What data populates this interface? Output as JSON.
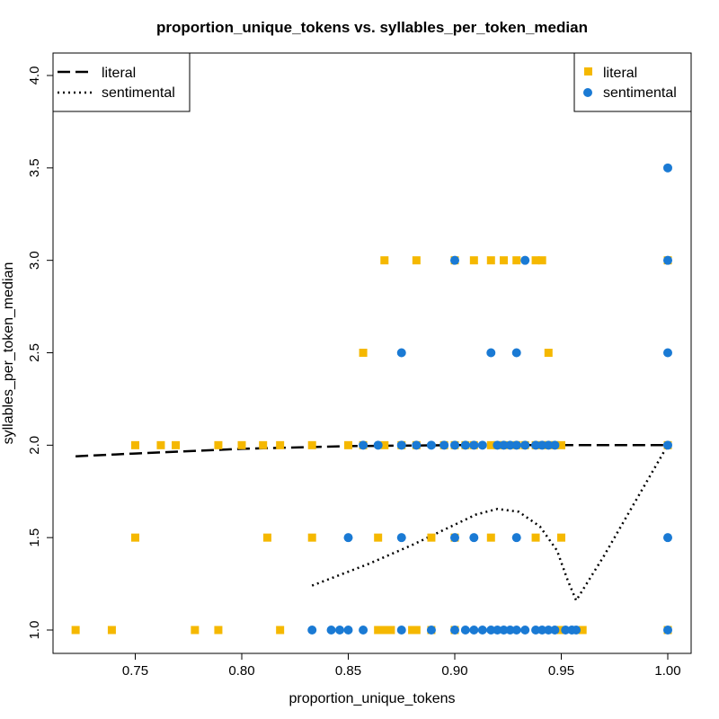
{
  "chart_data": {
    "type": "scatter",
    "title": "proportion_unique_tokens vs. syllables_per_token_median",
    "xlabel": "proportion_unique_tokens",
    "ylabel": "syllables_per_token_median",
    "xlim": [
      0.72,
      1.0
    ],
    "ylim": [
      1.0,
      4.0
    ],
    "x_ticks": [
      "0.75",
      "0.80",
      "0.85",
      "0.90",
      "0.95",
      "1.00"
    ],
    "y_ticks": [
      "1.0",
      "1.5",
      "2.0",
      "2.5",
      "3.0",
      "3.5",
      "4.0"
    ],
    "grid": false,
    "colors": {
      "literal": "#f5b800",
      "sentimental": "#1a7ad4"
    },
    "legend_points": {
      "placement": "top-right",
      "entries": [
        {
          "label": "literal",
          "marker": "square"
        },
        {
          "label": "sentimental",
          "marker": "circle"
        }
      ]
    },
    "legend_lines": {
      "placement": "top-left",
      "entries": [
        {
          "label": "literal",
          "dash": "long-dash"
        },
        {
          "label": "sentimental",
          "dash": "dotted"
        }
      ]
    },
    "series": [
      {
        "name": "literal",
        "marker": "square",
        "points": [
          [
            0.722,
            1.0
          ],
          [
            0.739,
            1.0
          ],
          [
            0.778,
            1.0
          ],
          [
            0.789,
            1.0
          ],
          [
            0.818,
            1.0
          ],
          [
            0.864,
            1.0
          ],
          [
            0.867,
            1.0
          ],
          [
            0.87,
            1.0
          ],
          [
            0.88,
            1.0
          ],
          [
            0.882,
            1.0
          ],
          [
            0.889,
            1.0
          ],
          [
            0.9,
            1.0
          ],
          [
            0.95,
            1.0
          ],
          [
            0.96,
            1.0
          ],
          [
            0.75,
            1.5
          ],
          [
            0.812,
            1.5
          ],
          [
            0.833,
            1.5
          ],
          [
            0.864,
            1.5
          ],
          [
            0.889,
            1.5
          ],
          [
            0.9,
            1.5
          ],
          [
            0.917,
            1.5
          ],
          [
            0.938,
            1.5
          ],
          [
            0.95,
            1.5
          ],
          [
            0.75,
            2.0
          ],
          [
            0.762,
            2.0
          ],
          [
            0.769,
            2.0
          ],
          [
            0.789,
            2.0
          ],
          [
            0.8,
            2.0
          ],
          [
            0.81,
            2.0
          ],
          [
            0.818,
            2.0
          ],
          [
            0.833,
            2.0
          ],
          [
            0.85,
            2.0
          ],
          [
            0.857,
            2.0
          ],
          [
            0.867,
            2.0
          ],
          [
            0.875,
            2.0
          ],
          [
            0.882,
            2.0
          ],
          [
            0.895,
            2.0
          ],
          [
            0.9,
            2.0
          ],
          [
            0.905,
            2.0
          ],
          [
            0.909,
            2.0
          ],
          [
            0.917,
            2.0
          ],
          [
            0.92,
            2.0
          ],
          [
            0.923,
            2.0
          ],
          [
            0.929,
            2.0
          ],
          [
            0.933,
            2.0
          ],
          [
            0.938,
            2.0
          ],
          [
            0.941,
            2.0
          ],
          [
            0.944,
            2.0
          ],
          [
            0.947,
            2.0
          ],
          [
            0.95,
            2.0
          ],
          [
            0.857,
            2.5
          ],
          [
            0.944,
            2.5
          ],
          [
            0.867,
            3.0
          ],
          [
            0.882,
            3.0
          ],
          [
            0.9,
            3.0
          ],
          [
            0.909,
            3.0
          ],
          [
            0.917,
            3.0
          ],
          [
            0.923,
            3.0
          ],
          [
            0.929,
            3.0
          ],
          [
            0.938,
            3.0
          ],
          [
            0.941,
            3.0
          ],
          [
            1.0,
            3.0
          ],
          [
            1.0,
            2.0
          ],
          [
            1.0,
            1.0
          ]
        ]
      },
      {
        "name": "sentimental",
        "marker": "circle",
        "points": [
          [
            0.833,
            1.0
          ],
          [
            0.842,
            1.0
          ],
          [
            0.846,
            1.0
          ],
          [
            0.85,
            1.0
          ],
          [
            0.857,
            1.0
          ],
          [
            0.875,
            1.0
          ],
          [
            0.889,
            1.0
          ],
          [
            0.9,
            1.0
          ],
          [
            0.905,
            1.0
          ],
          [
            0.909,
            1.0
          ],
          [
            0.913,
            1.0
          ],
          [
            0.917,
            1.0
          ],
          [
            0.92,
            1.0
          ],
          [
            0.923,
            1.0
          ],
          [
            0.926,
            1.0
          ],
          [
            0.929,
            1.0
          ],
          [
            0.933,
            1.0
          ],
          [
            0.938,
            1.0
          ],
          [
            0.941,
            1.0
          ],
          [
            0.944,
            1.0
          ],
          [
            0.947,
            1.0
          ],
          [
            0.952,
            1.0
          ],
          [
            0.955,
            1.0
          ],
          [
            0.957,
            1.0
          ],
          [
            1.0,
            1.0
          ],
          [
            0.85,
            1.5
          ],
          [
            0.875,
            1.5
          ],
          [
            0.9,
            1.5
          ],
          [
            0.909,
            1.5
          ],
          [
            0.929,
            1.5
          ],
          [
            1.0,
            1.5
          ],
          [
            0.857,
            2.0
          ],
          [
            0.864,
            2.0
          ],
          [
            0.875,
            2.0
          ],
          [
            0.882,
            2.0
          ],
          [
            0.889,
            2.0
          ],
          [
            0.895,
            2.0
          ],
          [
            0.9,
            2.0
          ],
          [
            0.905,
            2.0
          ],
          [
            0.909,
            2.0
          ],
          [
            0.913,
            2.0
          ],
          [
            0.92,
            2.0
          ],
          [
            0.923,
            2.0
          ],
          [
            0.926,
            2.0
          ],
          [
            0.929,
            2.0
          ],
          [
            0.933,
            2.0
          ],
          [
            0.938,
            2.0
          ],
          [
            0.941,
            2.0
          ],
          [
            0.944,
            2.0
          ],
          [
            0.947,
            2.0
          ],
          [
            1.0,
            2.0
          ],
          [
            0.875,
            2.5
          ],
          [
            0.917,
            2.5
          ],
          [
            0.929,
            2.5
          ],
          [
            1.0,
            2.5
          ],
          [
            0.9,
            3.0
          ],
          [
            0.933,
            3.0
          ],
          [
            1.0,
            3.0
          ],
          [
            1.0,
            3.5
          ]
        ]
      }
    ],
    "trend_lines": [
      {
        "name": "literal",
        "dash": "long-dash",
        "points": [
          [
            0.722,
            1.94
          ],
          [
            0.75,
            1.955
          ],
          [
            0.8,
            1.98
          ],
          [
            0.85,
            1.995
          ],
          [
            0.9,
            2.0
          ],
          [
            0.95,
            2.0
          ],
          [
            1.0,
            2.0
          ]
        ]
      },
      {
        "name": "sentimental",
        "dash": "dotted",
        "points": [
          [
            0.833,
            1.24
          ],
          [
            0.86,
            1.36
          ],
          [
            0.88,
            1.46
          ],
          [
            0.9,
            1.57
          ],
          [
            0.91,
            1.625
          ],
          [
            0.92,
            1.655
          ],
          [
            0.93,
            1.64
          ],
          [
            0.94,
            1.56
          ],
          [
            0.948,
            1.43
          ],
          [
            0.953,
            1.27
          ],
          [
            0.957,
            1.16
          ],
          [
            0.97,
            1.4
          ],
          [
            0.985,
            1.7
          ],
          [
            1.0,
            2.0
          ]
        ]
      }
    ]
  }
}
